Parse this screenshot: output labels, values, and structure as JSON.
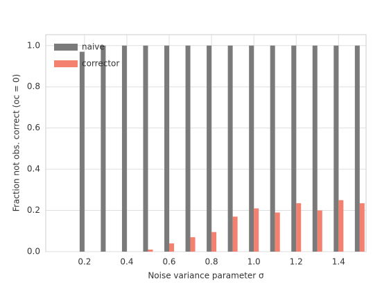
{
  "chart_data": {
    "type": "bar",
    "x_label": "Noise variance parameter σ",
    "y_label": "Fraction not obs. correct (oc = 0)",
    "x": [
      0.2,
      0.3,
      0.4,
      0.5,
      0.6,
      0.7,
      0.8,
      0.9,
      1.0,
      1.1,
      1.2,
      1.3,
      1.4,
      1.5
    ],
    "series": [
      {
        "name": "naive",
        "color": "#7a7a7a",
        "values": [
          0.97,
          1,
          1,
          1,
          1,
          1,
          1,
          1,
          1,
          1,
          1,
          1,
          1,
          1
        ]
      },
      {
        "name": "corrector",
        "color": "#f4806f",
        "values": [
          0,
          0,
          0,
          0.01,
          0.04,
          0.07,
          0.095,
          0.17,
          0.21,
          0.19,
          0.235,
          0.2,
          0.25,
          0.235
        ]
      }
    ],
    "xlim": [
      0.017,
      1.53
    ],
    "xticks": [
      0.2,
      0.4,
      0.6,
      0.8,
      {
        "value": 1,
        "label": "1.0"
      },
      1.2,
      1.4
    ],
    "ylim": [
      0,
      1.053
    ],
    "yticks": [
      {
        "value": 0,
        "label": "0.0"
      },
      0.2,
      0.4,
      0.6,
      0.8,
      {
        "value": 1,
        "label": "1.0"
      }
    ],
    "grid": true,
    "legend": "upper left"
  }
}
